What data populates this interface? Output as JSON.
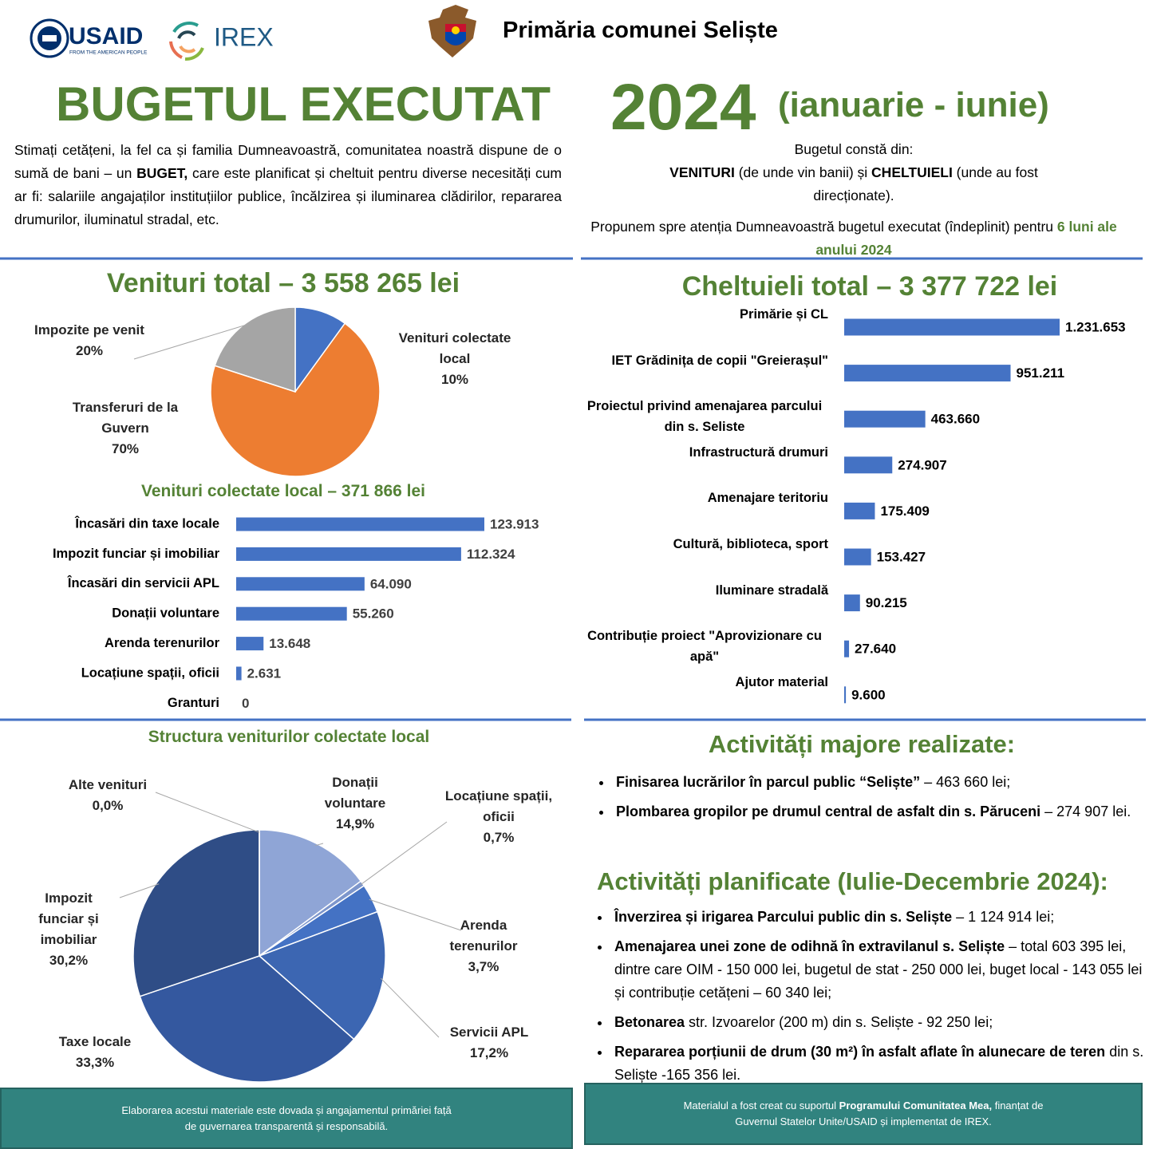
{
  "header": {
    "usaid": "USAID",
    "usaid_tagline": "FROM THE AMERICAN PEOPLE",
    "irex": "IREX",
    "institution": "Primăria comunei Seliște",
    "title": "BUGETUL EXECUTAT",
    "year": "2024",
    "period": "(ianuarie - iunie)"
  },
  "intro": {
    "left": [
      "Stimați cetățeni, la fel ca și familia Dumneavoastră, comunitatea noastră dispune de o sumă de bani – un ",
      "BUGET,",
      " care este planificat și cheltuit pentru diverse necesități cum ar fi: salariile angajaților instituțiilor publice, încălzirea și iluminarea clădirilor, repararea drumurilor, iluminatul stradal, etc."
    ],
    "right_heading": "Bugetul constă din:",
    "right_parts": [
      "VENITURI",
      " (de unde vin banii) și ",
      "CHELTUIELI",
      " (unde au fost direcționate)."
    ],
    "proposal": [
      "Propunem spre atenția Dumneavoastră bugetul executat (îndeplinit) pentru ",
      "6 luni ale anului 2024"
    ]
  },
  "chart_data": [
    {
      "type": "pie",
      "title": "Venituri total – 3 558 265 lei",
      "categories": [
        "Venituri colectate local",
        "Transferuri de la Guvern",
        "Impozite pe venit"
      ],
      "values": [
        10,
        70,
        20
      ],
      "value_labels": [
        "10%",
        "70%",
        "20%"
      ],
      "colors": [
        "#4472c4",
        "#ed7d31",
        "#a5a5a5"
      ]
    },
    {
      "type": "bar",
      "orientation": "horizontal",
      "title": "Venituri colectate local – 371 866 lei",
      "categories": [
        "Încasări din taxe locale",
        "Impozit funciar și imobiliar",
        "Încasări din servicii APL",
        "Donații voluntare",
        "Arenda terenurilor",
        "Locațiune spații, oficii",
        "Granturi"
      ],
      "values": [
        123913,
        112324,
        64090,
        55260,
        13648,
        2631,
        0
      ],
      "value_labels": [
        "123.913",
        "112.324",
        "64.090",
        "55.260",
        "13.648",
        "2.631",
        "0"
      ],
      "color": "#4472c4"
    },
    {
      "type": "bar",
      "orientation": "horizontal",
      "title": "Cheltuieli total – 3 377 722 lei",
      "categories": [
        "Primărie și CL",
        "IET Grădinița  de copii \"Greierașul\"",
        "Proiectul privind amenajarea parcului din s. Seliste",
        "Infrastructură drumuri",
        "Amenajare teritoriu",
        "Cultură, biblioteca, sport",
        "Iluminare stradală",
        "Contribuție  proiect \"Aprovizionare cu apă\"",
        "Ajutor material"
      ],
      "values": [
        1231653,
        951211,
        463660,
        274907,
        175409,
        153427,
        90215,
        27640,
        9600
      ],
      "value_labels": [
        "1.231.653",
        "951.211",
        "463.660",
        "274.907",
        "175.409",
        "153.427",
        "90.215",
        "27.640",
        "9.600"
      ],
      "color": "#4472c4"
    },
    {
      "type": "pie",
      "title": "Structura veniturilor colectate local",
      "categories": [
        "Donații voluntare",
        "Locațiune spații, oficii",
        "Arenda terenurilor",
        "Servicii APL",
        "Taxe locale",
        "Impozit funciar și imobiliar",
        "Alte venituri"
      ],
      "values": [
        14.9,
        0.7,
        3.7,
        17.2,
        33.3,
        30.2,
        0
      ],
      "value_labels": [
        "14,9%",
        "0,7%",
        "3,7%",
        "17,2%",
        "33,3%",
        "30,2%",
        "0,0%"
      ],
      "colors": [
        "#8fa5d6",
        "#7d96cc",
        "#4472c4",
        "#3c66b2",
        "#34589f",
        "#2f4d86",
        "#2a4575"
      ]
    }
  ],
  "activities": {
    "realized": {
      "title": "Activități majore realizate:",
      "items": [
        {
          "bold": "Finisarea lucrărilor în parcul public “Seliște”",
          "text": " – 463 660 lei;"
        },
        {
          "bold": "Plombarea gropilor pe drumul central de asfalt din s. Păruceni",
          "text": " – 274 907 lei."
        }
      ]
    },
    "planned": {
      "title": "Activități planificate (Iulie-Decembrie 2024):",
      "items": [
        {
          "bold": "Înverzirea și irigarea Parcului public din s. Seliște",
          "text": " – 1 124 914 lei;"
        },
        {
          "bold": "Amenajarea unei zone de odihnă în extravilanul s. Seliște",
          "text": " – total 603 395 lei, dintre care OIM - 150 000 lei, bugetul de stat - 250 000 lei, buget local - 143 055 lei și contribuție cetățeni –  60 340 lei;"
        },
        {
          "bold": "Betonarea",
          "text": " str. Izvoarelor (200 m) din s. Seliște -  92 250 lei;"
        },
        {
          "bold": "Repararea porțiunii de drum (30 m²) în asfalt aflate în alunecare de teren",
          "text": " din s. Seliște  -165 356 lei."
        }
      ]
    }
  },
  "footer": {
    "left": "Elaborarea acestui materiale este dovada și angajamentul primăriei  față de guvernarea transparentă și responsabilă.",
    "right": [
      "Materialul a fost creat cu suportul ",
      "Programului Comunitatea Mea,",
      " finanțat de Guvernul Statelor Unite/USAID și implementat de IREX."
    ]
  }
}
